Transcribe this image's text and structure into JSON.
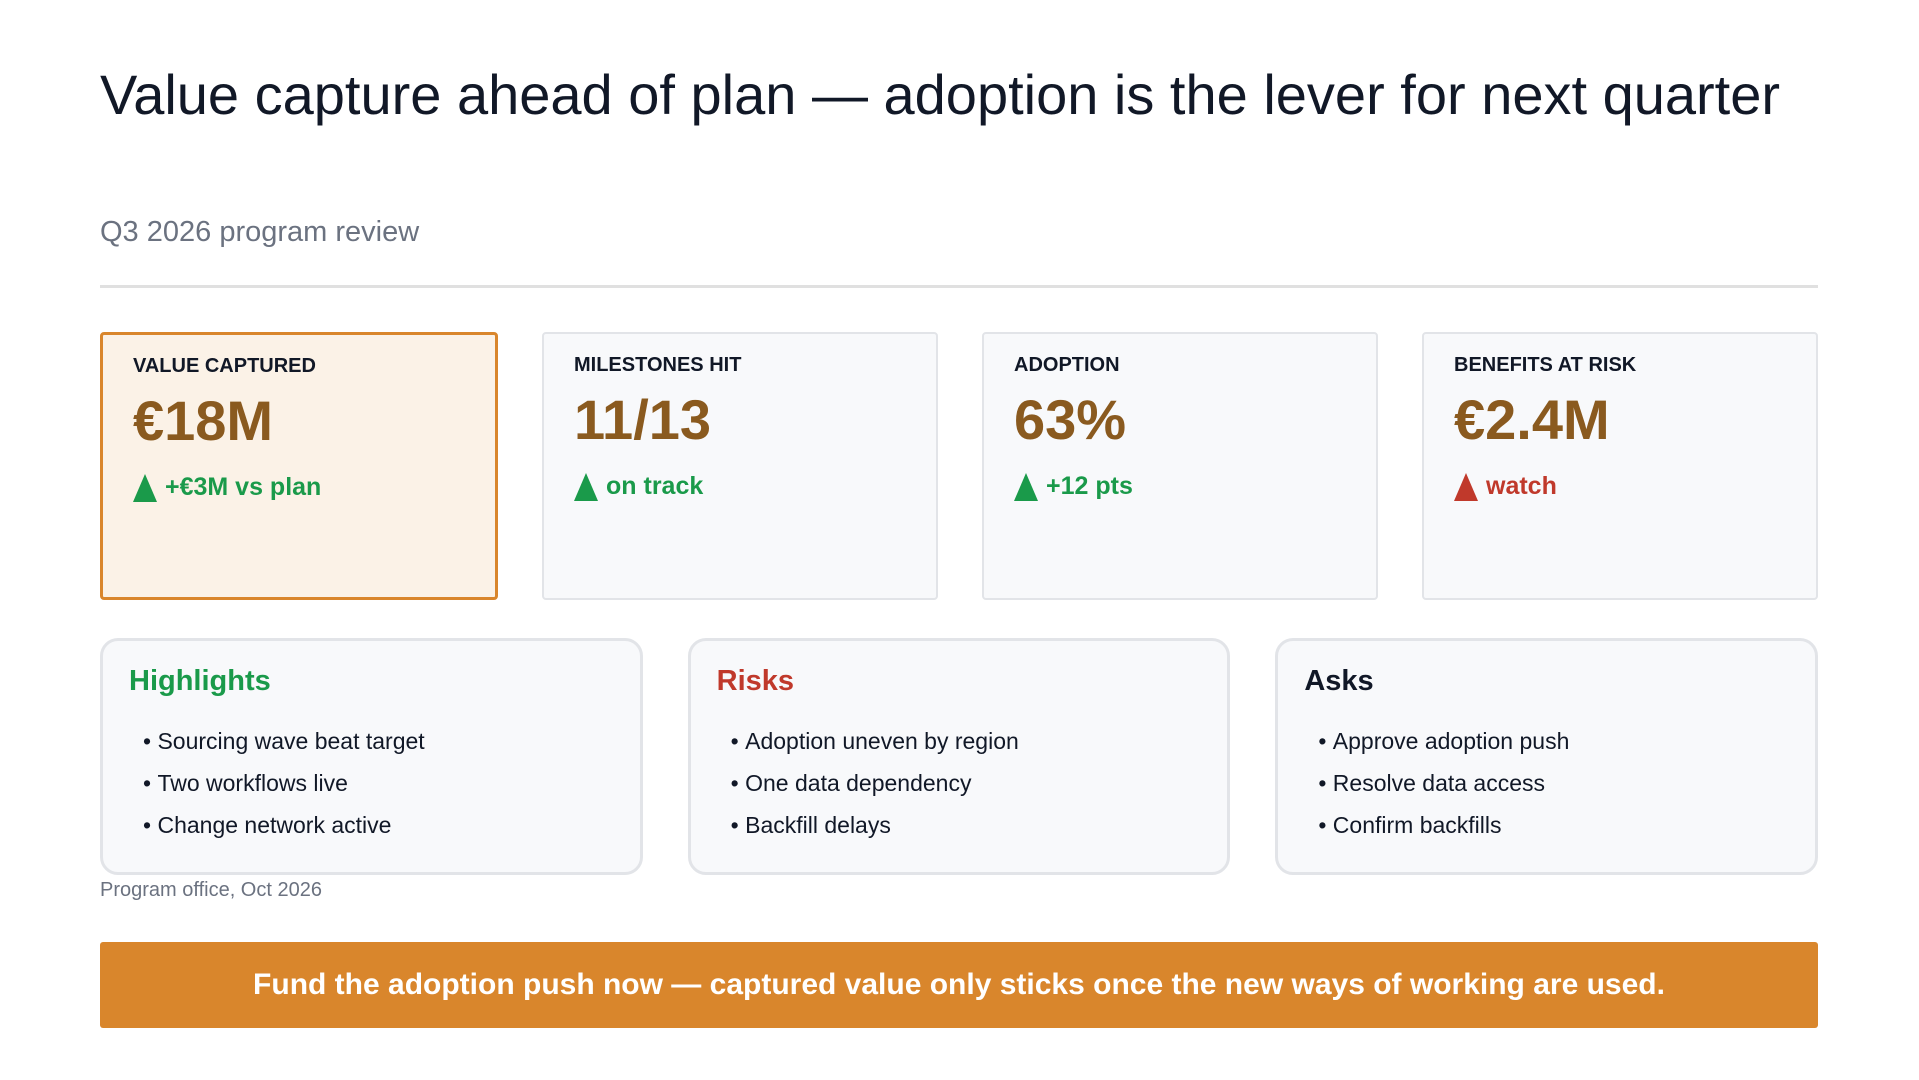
{
  "header": {
    "title": "Value capture ahead of plan — adoption is the lever for next quarter",
    "subtitle": "Q3 2026 program review"
  },
  "kpis": [
    {
      "label": "VALUE CAPTURED",
      "value": "€18M",
      "delta": "+€3M vs plan",
      "color": "#1a9a4a",
      "highlight": true
    },
    {
      "label": "MILESTONES HIT",
      "value": "11/13",
      "delta": "on track",
      "color": "#1a9a4a",
      "highlight": false
    },
    {
      "label": "ADOPTION",
      "value": "63%",
      "delta": "+12 pts",
      "color": "#1a9a4a",
      "highlight": false
    },
    {
      "label": "BENEFITS AT RISK",
      "value": "€2.4M",
      "delta": "watch",
      "color": "#c0392b",
      "highlight": false
    }
  ],
  "panels": [
    {
      "title": "Highlights",
      "color": "#1a9a4a",
      "items": [
        "Sourcing wave beat target",
        "Two workflows live",
        "Change network active"
      ]
    },
    {
      "title": "Risks",
      "color": "#c0392b",
      "items": [
        "Adoption uneven by region",
        "One data dependency",
        "Backfill delays"
      ]
    },
    {
      "title": "Asks",
      "color": "#111827",
      "items": [
        "Approve adoption push",
        "Resolve data access",
        "Confirm backfills"
      ]
    }
  ],
  "footnote": "Program office, Oct 2026",
  "banner": "Fund the adoption push now — captured value only sticks once the new ways of working are used."
}
